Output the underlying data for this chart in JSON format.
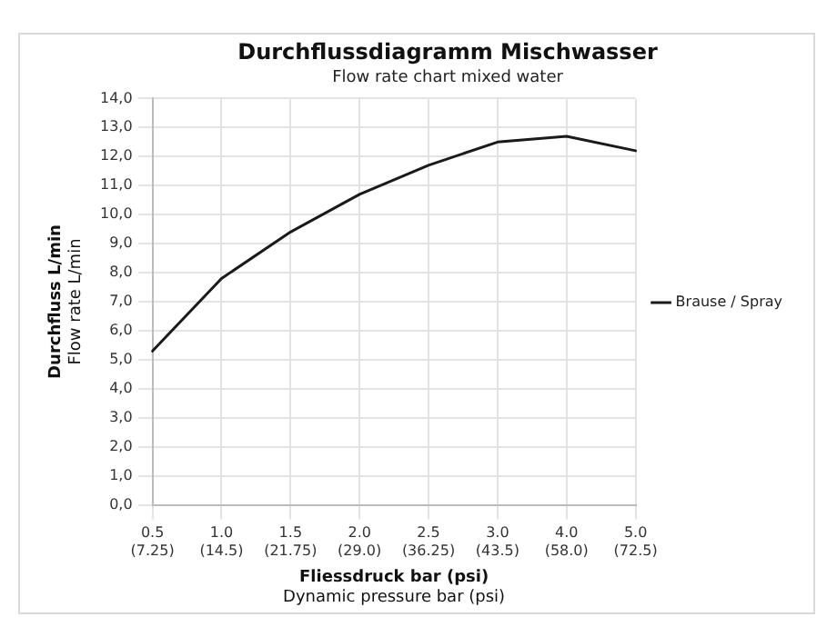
{
  "chart_data": {
    "type": "line",
    "title": "Durchflussdiagramm Mischwasser",
    "subtitle": "Flow rate chart mixed water",
    "xlabel": "Fliessdruck bar (psi)\nDynamic pressure bar (psi)",
    "ylabel": "Durchfluss L/min\nFlow rate L/min",
    "categories": [
      "0.5\n(7.25)",
      "1.0\n(14.5)",
      "1.5\n(21.75)",
      "2.0\n(29.0)",
      "2.5\n(36.25)",
      "3.0\n(43.5)",
      "4.0\n(58.0)",
      "5.0\n(72.5)"
    ],
    "series": [
      {
        "name": "Brause / Spray",
        "color": "#1a1a1a",
        "values": [
          5.3,
          7.8,
          9.4,
          10.7,
          11.7,
          12.5,
          12.7,
          12.2
        ]
      }
    ],
    "ylim": [
      0,
      14
    ],
    "yticks": [
      {
        "value": 0,
        "label": "0,0"
      },
      {
        "value": 1,
        "label": "1,0"
      },
      {
        "value": 2,
        "label": "2,0"
      },
      {
        "value": 3,
        "label": "3,0"
      },
      {
        "value": 4,
        "label": "4,0"
      },
      {
        "value": 5,
        "label": "5,0"
      },
      {
        "value": 6,
        "label": "6,0"
      },
      {
        "value": 7,
        "label": "7,0"
      },
      {
        "value": 8,
        "label": "8,0"
      },
      {
        "value": 9,
        "label": "9,0"
      },
      {
        "value": 10,
        "label": "10,0"
      },
      {
        "value": 11,
        "label": "11,0"
      },
      {
        "value": 12,
        "label": "12,0"
      },
      {
        "value": 13,
        "label": "13,0"
      },
      {
        "value": 14,
        "label": "14,0"
      }
    ],
    "grid": true,
    "legend": "right",
    "marker": "none",
    "line_style": "solid"
  }
}
